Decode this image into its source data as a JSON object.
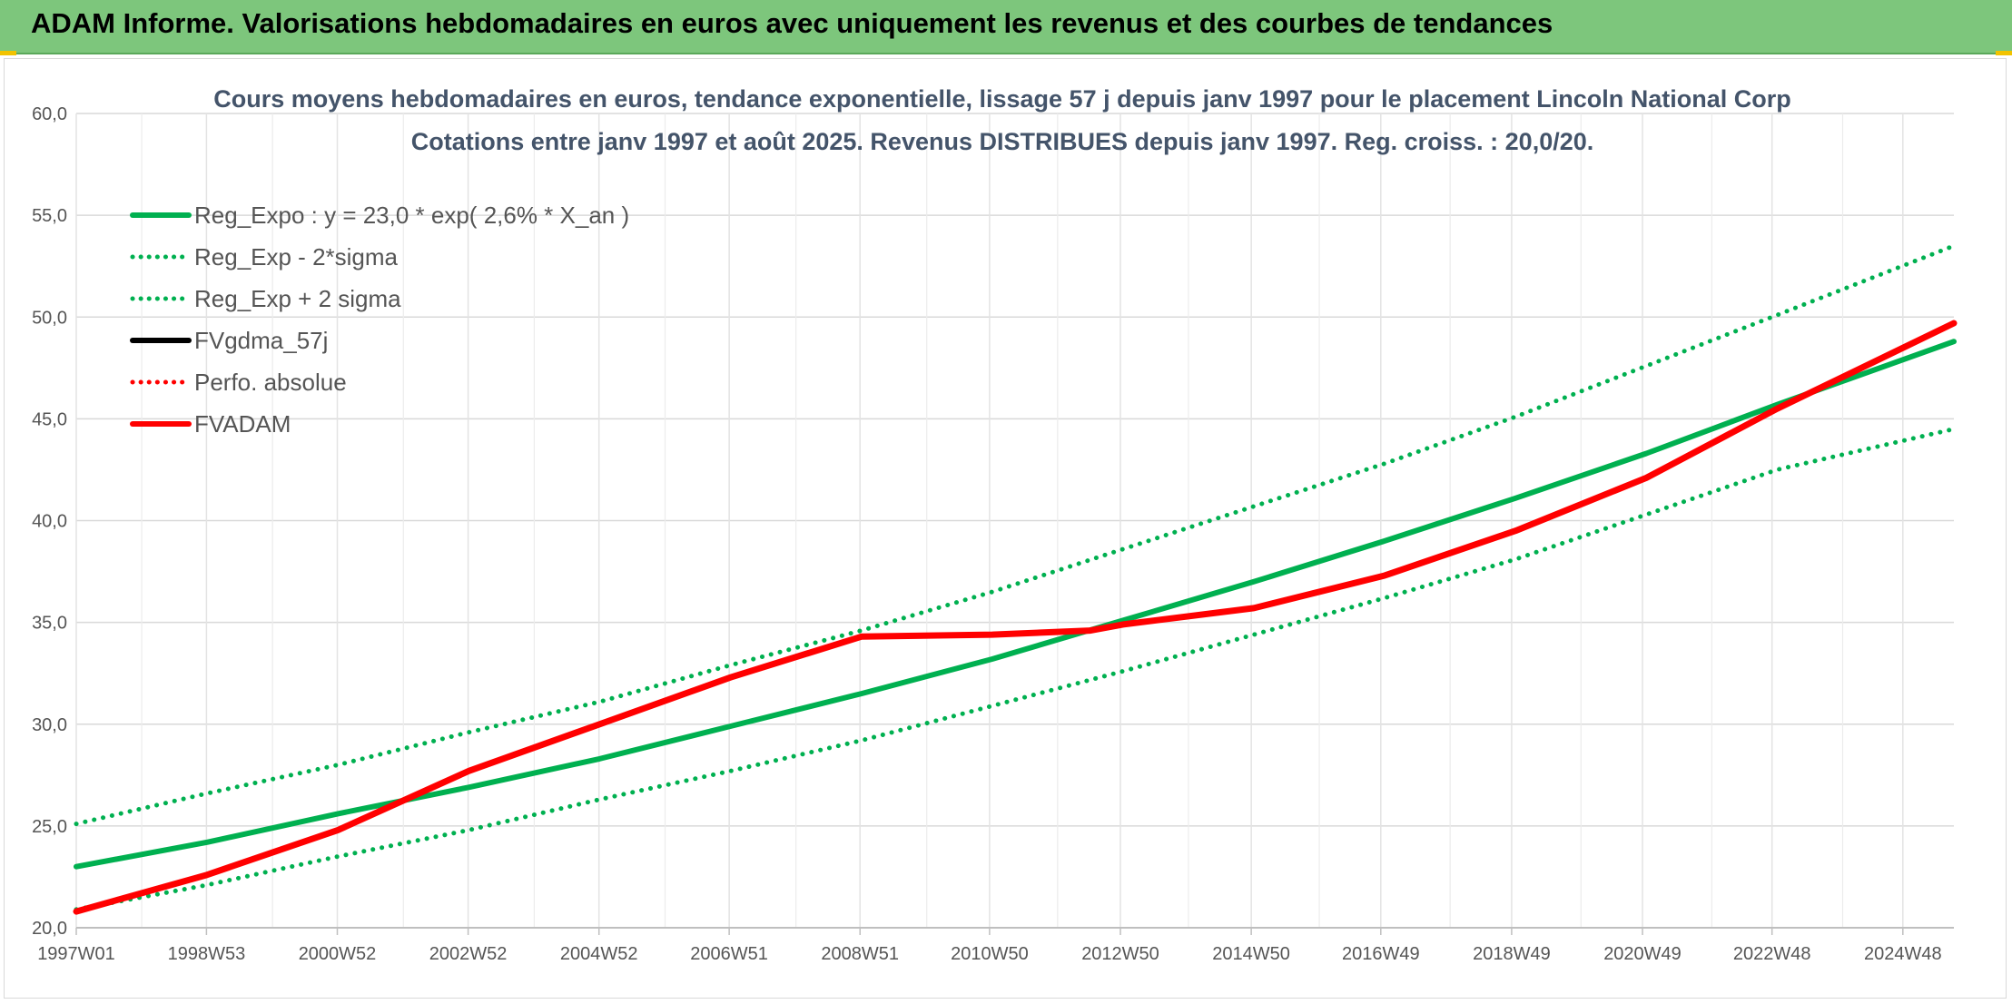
{
  "header": {
    "title": "ADAM Informe. Valorisations hebdomadaires en euros avec uniquement les revenus et des courbes de tendances"
  },
  "colors": {
    "banner": "#7dc67c",
    "green": "#00b050",
    "red": "#ff0000",
    "black": "#000000"
  },
  "chart_data": {
    "type": "line",
    "title": "Cours moyens hebdomadaires en euros, tendance exponentielle, lissage 57 j depuis janv 1997 pour le placement Lincoln National Corp",
    "subtitle": "Cotations entre janv 1997 et août 2025. Revenus DISTRIBUES depuis janv 1997. Reg. croiss. : 20,0/20.",
    "ylim": [
      20,
      60
    ],
    "yticks": [
      "20,0",
      "25,0",
      "30,0",
      "35,0",
      "40,0",
      "45,0",
      "50,0",
      "55,0",
      "60,0"
    ],
    "xlim": [
      1997.0,
      2025.7
    ],
    "xticks": [
      {
        "x": 1997.0,
        "label": "1997W01"
      },
      {
        "x": 1998.99,
        "label": "1998W53"
      },
      {
        "x": 2000.99,
        "label": "2000W52"
      },
      {
        "x": 2002.99,
        "label": "2002W52"
      },
      {
        "x": 2004.99,
        "label": "2004W52"
      },
      {
        "x": 2006.98,
        "label": "2006W51"
      },
      {
        "x": 2008.98,
        "label": "2008W51"
      },
      {
        "x": 2010.96,
        "label": "2010W50"
      },
      {
        "x": 2012.96,
        "label": "2012W50"
      },
      {
        "x": 2014.96,
        "label": "2014W50"
      },
      {
        "x": 2016.94,
        "label": "2016W49"
      },
      {
        "x": 2018.94,
        "label": "2018W49"
      },
      {
        "x": 2020.94,
        "label": "2020W49"
      },
      {
        "x": 2022.92,
        "label": "2022W48"
      },
      {
        "x": 2024.92,
        "label": "2024W48"
      }
    ],
    "legend_position": "top-left",
    "series": [
      {
        "name": "Reg_Expo : y = 23,0 * exp( 2,6% *  X_an )",
        "style": "solid",
        "color": "#00b050",
        "x": [
          1997,
          1999,
          2001,
          2003,
          2005,
          2007,
          2009,
          2011,
          2013,
          2015,
          2017,
          2019,
          2021,
          2023,
          2025.7
        ],
        "y": [
          23.0,
          24.2,
          25.6,
          26.9,
          28.3,
          29.9,
          31.5,
          33.2,
          35.1,
          37.0,
          39.0,
          41.1,
          43.3,
          45.7,
          48.8
        ]
      },
      {
        "name": "Reg_Exp - 2*sigma",
        "style": "dotted",
        "color": "#00b050",
        "x": [
          1997,
          1999,
          2001,
          2003,
          2005,
          2007,
          2009,
          2011,
          2013,
          2015,
          2017,
          2019,
          2021,
          2023,
          2025.7
        ],
        "y": [
          20.9,
          22.1,
          23.5,
          24.8,
          26.3,
          27.7,
          29.2,
          30.9,
          32.6,
          34.4,
          36.2,
          38.1,
          40.3,
          42.5,
          44.5
        ]
      },
      {
        "name": "Reg_Exp + 2 sigma",
        "style": "dotted",
        "color": "#00b050",
        "x": [
          1997,
          1999,
          2001,
          2003,
          2005,
          2007,
          2009,
          2011,
          2013,
          2015,
          2017,
          2019,
          2021,
          2023,
          2025.7
        ],
        "y": [
          25.1,
          26.6,
          28.0,
          29.6,
          31.1,
          32.9,
          34.6,
          36.5,
          38.6,
          40.7,
          42.8,
          45.1,
          47.6,
          50.1,
          53.5
        ]
      },
      {
        "name": "FVgdma_57j",
        "style": "solid",
        "color": "#000000",
        "x": [],
        "y": []
      },
      {
        "name": "Perfo. absolue",
        "style": "dotted",
        "color": "#ff0000",
        "x": [],
        "y": []
      },
      {
        "name": "FVADAM",
        "style": "solid",
        "color": "#ff0000",
        "x": [
          1997,
          1999,
          2001,
          2003,
          2005,
          2007,
          2009,
          2011,
          2012.5,
          2013,
          2015,
          2017,
          2019,
          2021,
          2023,
          2025.7
        ],
        "y": [
          20.8,
          22.6,
          24.8,
          27.7,
          30.0,
          32.3,
          34.3,
          34.4,
          34.6,
          34.9,
          35.7,
          37.3,
          39.5,
          42.1,
          45.5,
          49.7
        ]
      }
    ]
  }
}
